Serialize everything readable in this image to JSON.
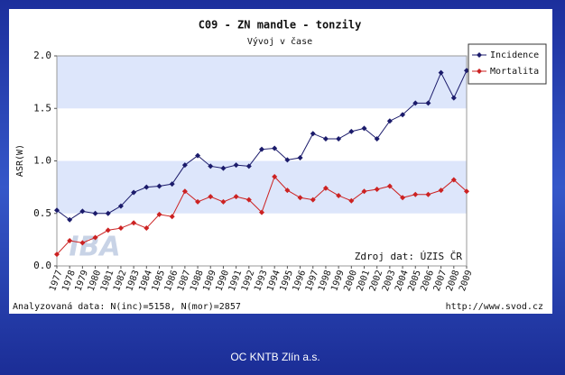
{
  "chart_data": {
    "type": "line",
    "title": "C09 - ZN mandle - tonzily",
    "subtitle": "Vývoj v čase",
    "y_label": "ASR(W)",
    "source": "Zdroj dat: ÚZIS ČR",
    "watermark": "IBA",
    "footer_left": "Analyzovaná data: N(inc)=5158, N(mor)=2857",
    "footer_right": "http://www.svod.cz",
    "slide_caption": "OC KNTB Zlín a.s.",
    "x": [
      1977,
      1978,
      1979,
      1980,
      1981,
      1982,
      1983,
      1984,
      1985,
      1986,
      1987,
      1988,
      1989,
      1990,
      1991,
      1992,
      1993,
      1994,
      1995,
      1996,
      1997,
      1998,
      1999,
      2000,
      2001,
      2002,
      2003,
      2004,
      2005,
      2006,
      2007,
      2008,
      2009
    ],
    "xlim": [
      1977,
      2009
    ],
    "ylim": [
      0,
      2
    ],
    "yticks": [
      {
        "value": 0,
        "label": "0.0"
      },
      0.5,
      {
        "value": 1,
        "label": "1.0"
      },
      1.5,
      {
        "value": 2,
        "label": "2.0"
      }
    ],
    "band_color": "#dde6fb",
    "legend": "top-right",
    "series": [
      {
        "name": "Incidence",
        "color": "#1b1b6b",
        "values": [
          0.53,
          0.44,
          0.52,
          0.5,
          0.5,
          0.57,
          0.7,
          0.75,
          0.76,
          0.78,
          0.96,
          1.05,
          0.95,
          0.93,
          0.96,
          0.95,
          1.11,
          1.12,
          1.01,
          1.03,
          1.26,
          1.21,
          1.21,
          1.28,
          1.31,
          1.21,
          1.38,
          1.44,
          1.55,
          1.55,
          1.84,
          1.6,
          1.86
        ]
      },
      {
        "name": "Mortalita",
        "color": "#cc2222",
        "values": [
          0.11,
          0.24,
          0.22,
          0.27,
          0.34,
          0.36,
          0.41,
          0.36,
          0.49,
          0.47,
          0.71,
          0.61,
          0.66,
          0.61,
          0.66,
          0.63,
          0.51,
          0.85,
          0.72,
          0.65,
          0.63,
          0.74,
          0.67,
          0.62,
          0.71,
          0.73,
          0.76,
          0.65,
          0.68,
          0.68,
          0.72,
          0.82,
          0.71
        ]
      }
    ]
  }
}
